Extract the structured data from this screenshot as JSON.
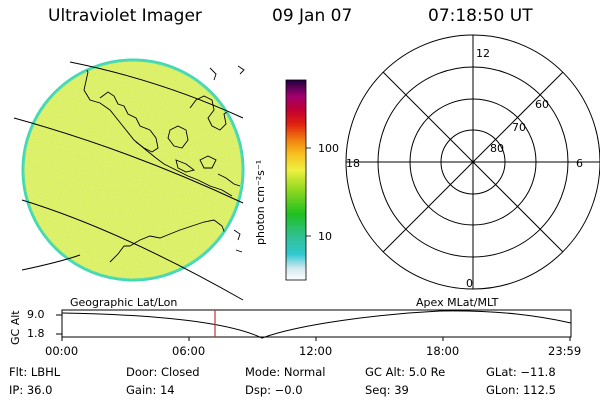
{
  "header": {
    "instrument": "Ultraviolet Imager",
    "date": "09 Jan 07",
    "time": "07:18:50 UT"
  },
  "colorbar": {
    "unit_label": "photon cm⁻²s⁻¹",
    "ticks": [
      "100",
      "10"
    ]
  },
  "polar_plot": {
    "mlt_labels": {
      "top": "12",
      "left": "18",
      "right": "6",
      "bottom": "0"
    },
    "lat_labels": [
      "60",
      "70",
      "80"
    ]
  },
  "panel_labels": {
    "left": "Geographic Lat/Lon",
    "right": "Apex MLat/MLT"
  },
  "timeline": {
    "ylabel": "GC Alt",
    "yticks": [
      "9.0",
      "1.8"
    ],
    "xticks": [
      "00:00",
      "06:00",
      "12:00",
      "18:00",
      "23:59"
    ],
    "cursor_color": "#c83232"
  },
  "info": {
    "row1": [
      "Flt: LBHL",
      "Door: Closed",
      "Mode: Normal",
      "GC Alt: 5.0 Re",
      "GLat: −11.8"
    ],
    "row2": [
      "IP: 36.0",
      "Gain: 14",
      "Dsp:  −0.0",
      "Seq: 39",
      "GLon: 112.5"
    ]
  },
  "colors": {
    "disk_fill": "#d6ee55",
    "disk_edge": "#40d8b0"
  }
}
